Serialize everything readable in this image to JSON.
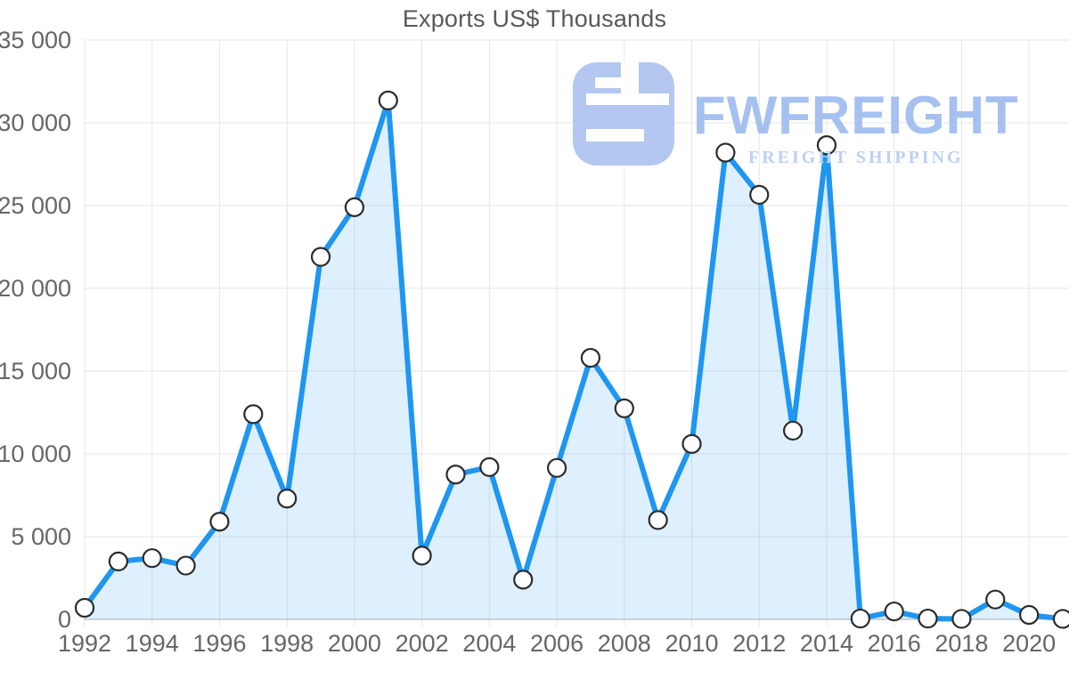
{
  "chart_data": {
    "type": "area",
    "title": "Exports US$ Thousands",
    "xlabel": "",
    "ylabel": "",
    "x": [
      1992,
      1993,
      1994,
      1995,
      1996,
      1997,
      1998,
      1999,
      2000,
      2001,
      2002,
      2003,
      2004,
      2005,
      2006,
      2007,
      2008,
      2009,
      2010,
      2011,
      2012,
      2013,
      2014,
      2015,
      2016,
      2017,
      2018,
      2019,
      2020,
      2021
    ],
    "series": [
      {
        "name": "Exports US$ Thousands",
        "values": [
          700,
          3500,
          3700,
          3250,
          5900,
          12400,
          7300,
          21900,
          24900,
          31350,
          3850,
          8750,
          9200,
          2400,
          9150,
          15800,
          12750,
          6000,
          10600,
          28200,
          25650,
          11400,
          28650,
          50,
          480,
          50,
          30,
          1200,
          270,
          30
        ]
      }
    ],
    "ylim": [
      0,
      35000
    ],
    "grid": true,
    "legend": "none",
    "y_ticks": [
      {
        "value": 0,
        "label": "0"
      },
      {
        "value": 5000,
        "label": "5 000"
      },
      {
        "value": 10000,
        "label": "10 000"
      },
      {
        "value": 15000,
        "label": "15 000"
      },
      {
        "value": 20000,
        "label": "20 000"
      },
      {
        "value": 25000,
        "label": "25 000"
      },
      {
        "value": 30000,
        "label": "30 000"
      },
      {
        "value": 35000,
        "label": "35 000"
      }
    ],
    "x_tick_labels": [
      "1992",
      "1994",
      "1996",
      "1998",
      "2000",
      "2002",
      "2004",
      "2006",
      "2008",
      "2010",
      "2012",
      "2014",
      "2016",
      "2018",
      "2020"
    ],
    "style": {
      "line_color": "#1e96f2",
      "area_fill": "rgba(33,150,243,0.15)",
      "marker_fill": "#ffffff",
      "marker_stroke": "#2b2b2b",
      "gridline_color": "#e6e6e6",
      "axis_line_color": "#c9c9c9",
      "tick_text_color": "#666666",
      "title_text_color": "#595959"
    }
  },
  "logo": {
    "title": "FWFREIGHT",
    "subtitle": "FREIGHT SHIPPING",
    "icon": "fwfreight-glyph",
    "icon_color": "#b3c7f0"
  }
}
